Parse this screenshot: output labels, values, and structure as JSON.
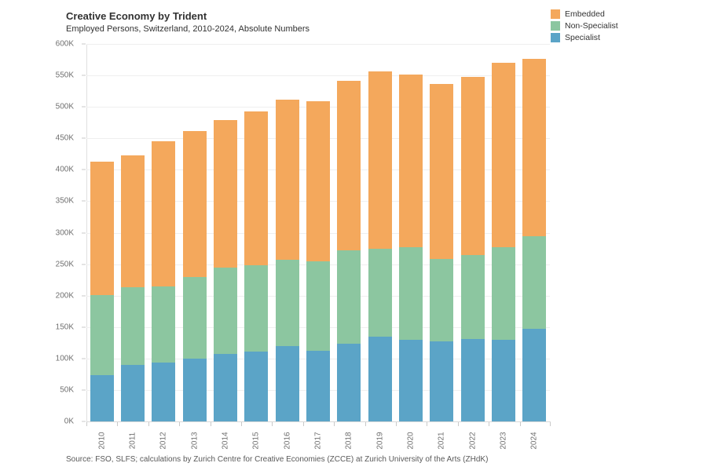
{
  "header": {
    "title": "Creative Economy by Trident",
    "subtitle": "Employed Persons, Switzerland, 2010-2024, Absolute Numbers"
  },
  "legend": {
    "position": "top-right",
    "items": [
      {
        "label": "Embedded",
        "color": "#F4A85C"
      },
      {
        "label": "Non-Specialist",
        "color": "#8CC6A0"
      },
      {
        "label": "Specialist",
        "color": "#5BA4C7"
      }
    ]
  },
  "footer": {
    "source": "Source: FSO, SLFS; calculations by Zurich Centre for Creative Economies (ZCCE) at Zurich University of the Arts (ZHdK)"
  },
  "chart_data": {
    "type": "bar",
    "stacked": true,
    "title": "Creative Economy by Trident",
    "subtitle": "Employed Persons, Switzerland, 2010-2024, Absolute Numbers",
    "unit": "thousands of employed persons (K)",
    "xlabel": "",
    "ylabel": "",
    "ylim": [
      0,
      600
    ],
    "ytick_step": 50,
    "yticks": [
      "0K",
      "50K",
      "100K",
      "150K",
      "200K",
      "250K",
      "300K",
      "350K",
      "400K",
      "450K",
      "500K",
      "550K",
      "600K"
    ],
    "grid": true,
    "legend_position": "top-right",
    "categories": [
      "2010",
      "2011",
      "2012",
      "2013",
      "2014",
      "2015",
      "2016",
      "2017",
      "2018",
      "2019",
      "2020",
      "2021",
      "2022",
      "2023",
      "2024"
    ],
    "series": [
      {
        "name": "Specialist",
        "color": "#5BA4C7",
        "values": [
          73,
          90,
          93,
          100,
          107,
          111,
          120,
          112,
          123,
          135,
          130,
          127,
          131,
          130,
          147
        ]
      },
      {
        "name": "Non-Specialist",
        "color": "#8CC6A0",
        "values": [
          128,
          123,
          122,
          130,
          137,
          137,
          137,
          143,
          149,
          139,
          147,
          131,
          134,
          147,
          147
        ]
      },
      {
        "name": "Embedded",
        "color": "#F4A85C",
        "values": [
          212,
          210,
          230,
          232,
          235,
          245,
          254,
          254,
          269,
          283,
          274,
          278,
          283,
          293,
          282
        ]
      }
    ],
    "totals": [
      413,
      423,
      445,
      462,
      479,
      493,
      511,
      509,
      541,
      557,
      551,
      536,
      548,
      570,
      576
    ]
  }
}
